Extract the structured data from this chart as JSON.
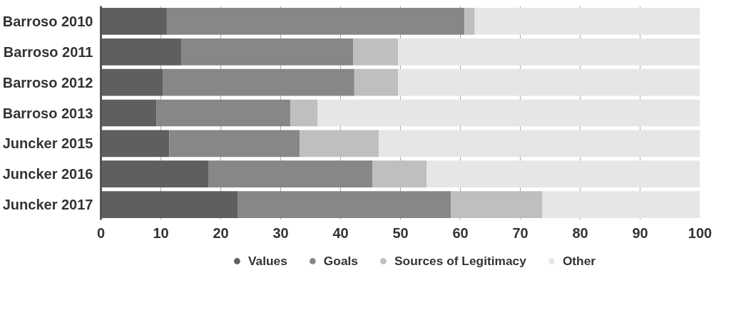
{
  "chart_data": {
    "type": "bar",
    "orientation": "horizontal",
    "stacked": true,
    "categories": [
      "Barroso 2010",
      "Barroso 2011",
      "Barroso 2012",
      "Barroso 2013",
      "Juncker 2015",
      "Juncker 2016",
      "Juncker 2017"
    ],
    "series": [
      {
        "name": "Values",
        "color": "#5f5f5f",
        "values": [
          11,
          13.4,
          10.3,
          9.3,
          11.4,
          18,
          22.8
        ]
      },
      {
        "name": "Goals",
        "color": "#878787",
        "values": [
          49.7,
          28.7,
          32,
          22.3,
          21.8,
          27.3,
          35.6
        ]
      },
      {
        "name": "Sources of Legitimacy",
        "color": "#bfbfbf",
        "values": [
          1.7,
          7.5,
          7.3,
          4.6,
          13.2,
          9.1,
          15.3
        ]
      },
      {
        "name": "Other",
        "color": "#e6e6e6",
        "values": [
          37.6,
          50.4,
          50.4,
          63.8,
          53.6,
          45.6,
          26.3
        ]
      }
    ],
    "xlim": [
      0,
      100
    ],
    "xticks": [
      0,
      10,
      20,
      30,
      40,
      50,
      60,
      70,
      80,
      90,
      100
    ],
    "grid": "x",
    "legend": "bottom"
  }
}
